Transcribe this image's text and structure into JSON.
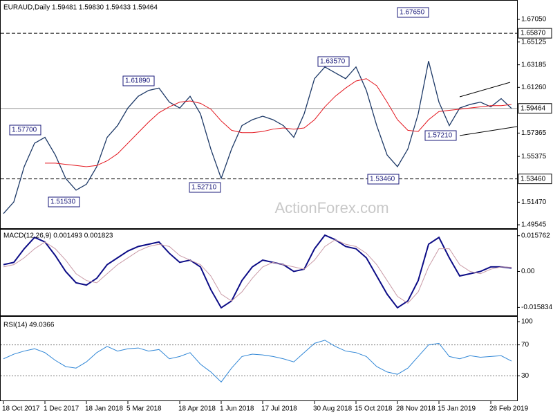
{
  "chart_data": [
    {
      "type": "line",
      "title": "EURAUD,Daily  1.59481 1.59830 1.59433 1.59464",
      "series": [
        {
          "color": "#1c3866",
          "values": [
            1.505,
            1.515,
            1.545,
            1.565,
            1.57,
            1.555,
            1.535,
            1.525,
            1.53,
            1.545,
            1.57,
            1.58,
            1.595,
            1.605,
            1.61,
            1.612,
            1.6,
            1.595,
            1.605,
            1.59,
            1.56,
            1.535,
            1.56,
            1.58,
            1.585,
            1.588,
            1.585,
            1.58,
            1.57,
            1.59,
            1.62,
            1.63,
            1.625,
            1.62,
            1.63,
            1.61,
            1.58,
            1.555,
            1.545,
            1.56,
            1.59,
            1.635,
            1.6,
            1.58,
            1.595,
            1.598,
            1.6,
            1.596,
            1.603,
            1.59464
          ]
        },
        {
          "color": "#e3141c",
          "values": [
            null,
            null,
            null,
            null,
            1.548,
            1.548,
            1.547,
            1.546,
            1.545,
            1.546,
            1.55,
            1.556,
            1.565,
            1.574,
            1.583,
            1.591,
            1.596,
            1.6,
            1.601,
            1.599,
            1.594,
            1.584,
            1.576,
            1.574,
            1.574,
            1.575,
            1.577,
            1.578,
            1.577,
            1.578,
            1.585,
            1.596,
            1.605,
            1.612,
            1.618,
            1.62,
            1.614,
            1.6,
            1.585,
            1.576,
            1.575,
            1.585,
            1.592,
            1.593,
            1.594,
            1.595,
            1.596,
            1.597,
            1.597,
            1.598
          ]
        }
      ],
      "ylim": [
        1.4937,
        1.6841
      ],
      "yticks": [
        {
          "value": 1.6705,
          "label": "1.67050"
        },
        1.65125,
        1.63185,
        {
          "value": 1.6126,
          "label": "1.61260"
        },
        1.57365,
        1.55375,
        {
          "value": 1.5147,
          "label": "1.51470"
        },
        1.49545
      ],
      "levels": [
        {
          "value": 1.6587,
          "label": "1.65870",
          "style": "dashed"
        },
        {
          "value": 1.59464,
          "label": "1.59464",
          "style": "solid"
        },
        {
          "value": 1.5346,
          "label": "1.53460",
          "style": "dashed"
        }
      ],
      "annotations": [
        {
          "value": 1.6765,
          "label": "1.67650"
        },
        {
          "value": 1.6357,
          "label": "1.63570"
        },
        {
          "value": 1.6189,
          "label": "1.61890"
        },
        {
          "value": 1.577,
          "label": "1.57700"
        },
        {
          "value": 1.5153,
          "label": "1.51530"
        },
        {
          "value": 1.5271,
          "label": "1.52710"
        },
        {
          "value": 1.5346,
          "label": "1.53460"
        },
        {
          "value": 1.5721,
          "label": "1.57210"
        }
      ],
      "watermark": "ActionForex.com"
    },
    {
      "type": "line",
      "title": "MACD(12,26,9) 0.001493 0.001823",
      "series": [
        {
          "color": "#0c0c86",
          "values": [
            0.003,
            0.004,
            0.01,
            0.015,
            0.013,
            0.007,
            0.0,
            -0.005,
            -0.006,
            -0.003,
            0.003,
            0.006,
            0.009,
            0.011,
            0.012,
            0.013,
            0.008,
            0.004,
            0.005,
            0.002,
            -0.008,
            -0.016,
            -0.013,
            -0.004,
            0.002,
            0.005,
            0.004,
            0.003,
            0.0,
            0.001,
            0.01,
            0.016,
            0.014,
            0.011,
            0.01,
            0.006,
            -0.002,
            -0.01,
            -0.016,
            -0.013,
            -0.004,
            0.012,
            0.015,
            0.006,
            -0.002,
            -0.001,
            0.0,
            0.002,
            0.002,
            0.0015
          ]
        },
        {
          "color": "#c99aa6",
          "values": [
            0.002,
            0.003,
            0.006,
            0.01,
            0.013,
            0.01,
            0.005,
            -0.001,
            -0.004,
            -0.005,
            -0.001,
            0.003,
            0.006,
            0.009,
            0.011,
            0.012,
            0.011,
            0.007,
            0.005,
            0.003,
            -0.002,
            -0.01,
            -0.013,
            -0.009,
            -0.003,
            0.002,
            0.004,
            0.003,
            0.002,
            0.001,
            0.005,
            0.011,
            0.014,
            0.012,
            0.011,
            0.008,
            0.003,
            -0.004,
            -0.011,
            -0.014,
            -0.009,
            0.002,
            0.01,
            0.01,
            0.003,
            0.0,
            -0.001,
            0.001,
            0.002,
            0.0018
          ]
        }
      ],
      "ylim": [
        -0.01815,
        0.01721
      ],
      "yticks": [
        0.015762,
        {
          "value": 0,
          "label": "0.00"
        },
        -0.015834
      ]
    },
    {
      "type": "line",
      "title": "RSI(14) 49.0366",
      "categories": [
        "18 Oct 2017",
        null,
        null,
        null,
        "1 Dec 2017",
        null,
        null,
        null,
        "18 Jan 2018",
        null,
        null,
        null,
        "5 Mar 2018",
        null,
        null,
        null,
        null,
        "18 Apr 2018",
        null,
        null,
        null,
        "1 Jun 2018",
        null,
        null,
        null,
        "17 Jul 2018",
        null,
        null,
        null,
        null,
        "30 Aug 2018",
        null,
        null,
        null,
        "15 Oct 2018",
        null,
        null,
        null,
        "28 Nov 2018",
        null,
        null,
        null,
        "15 Jan 2019",
        null,
        null,
        null,
        null,
        "28 Feb 2019",
        null,
        null
      ],
      "series": [
        {
          "color": "#2f86d6",
          "values": [
            52,
            58,
            62,
            65,
            60,
            50,
            42,
            40,
            48,
            60,
            68,
            62,
            65,
            66,
            62,
            64,
            52,
            55,
            60,
            45,
            35,
            22,
            40,
            55,
            58,
            57,
            55,
            52,
            48,
            60,
            72,
            76,
            68,
            62,
            60,
            55,
            42,
            35,
            32,
            40,
            55,
            70,
            72,
            55,
            52,
            56,
            54,
            55,
            56,
            49.0366
          ]
        }
      ],
      "ylim": [
        0,
        100
      ],
      "yticks": [
        100,
        70,
        30
      ],
      "levels": [
        70,
        30
      ]
    }
  ]
}
